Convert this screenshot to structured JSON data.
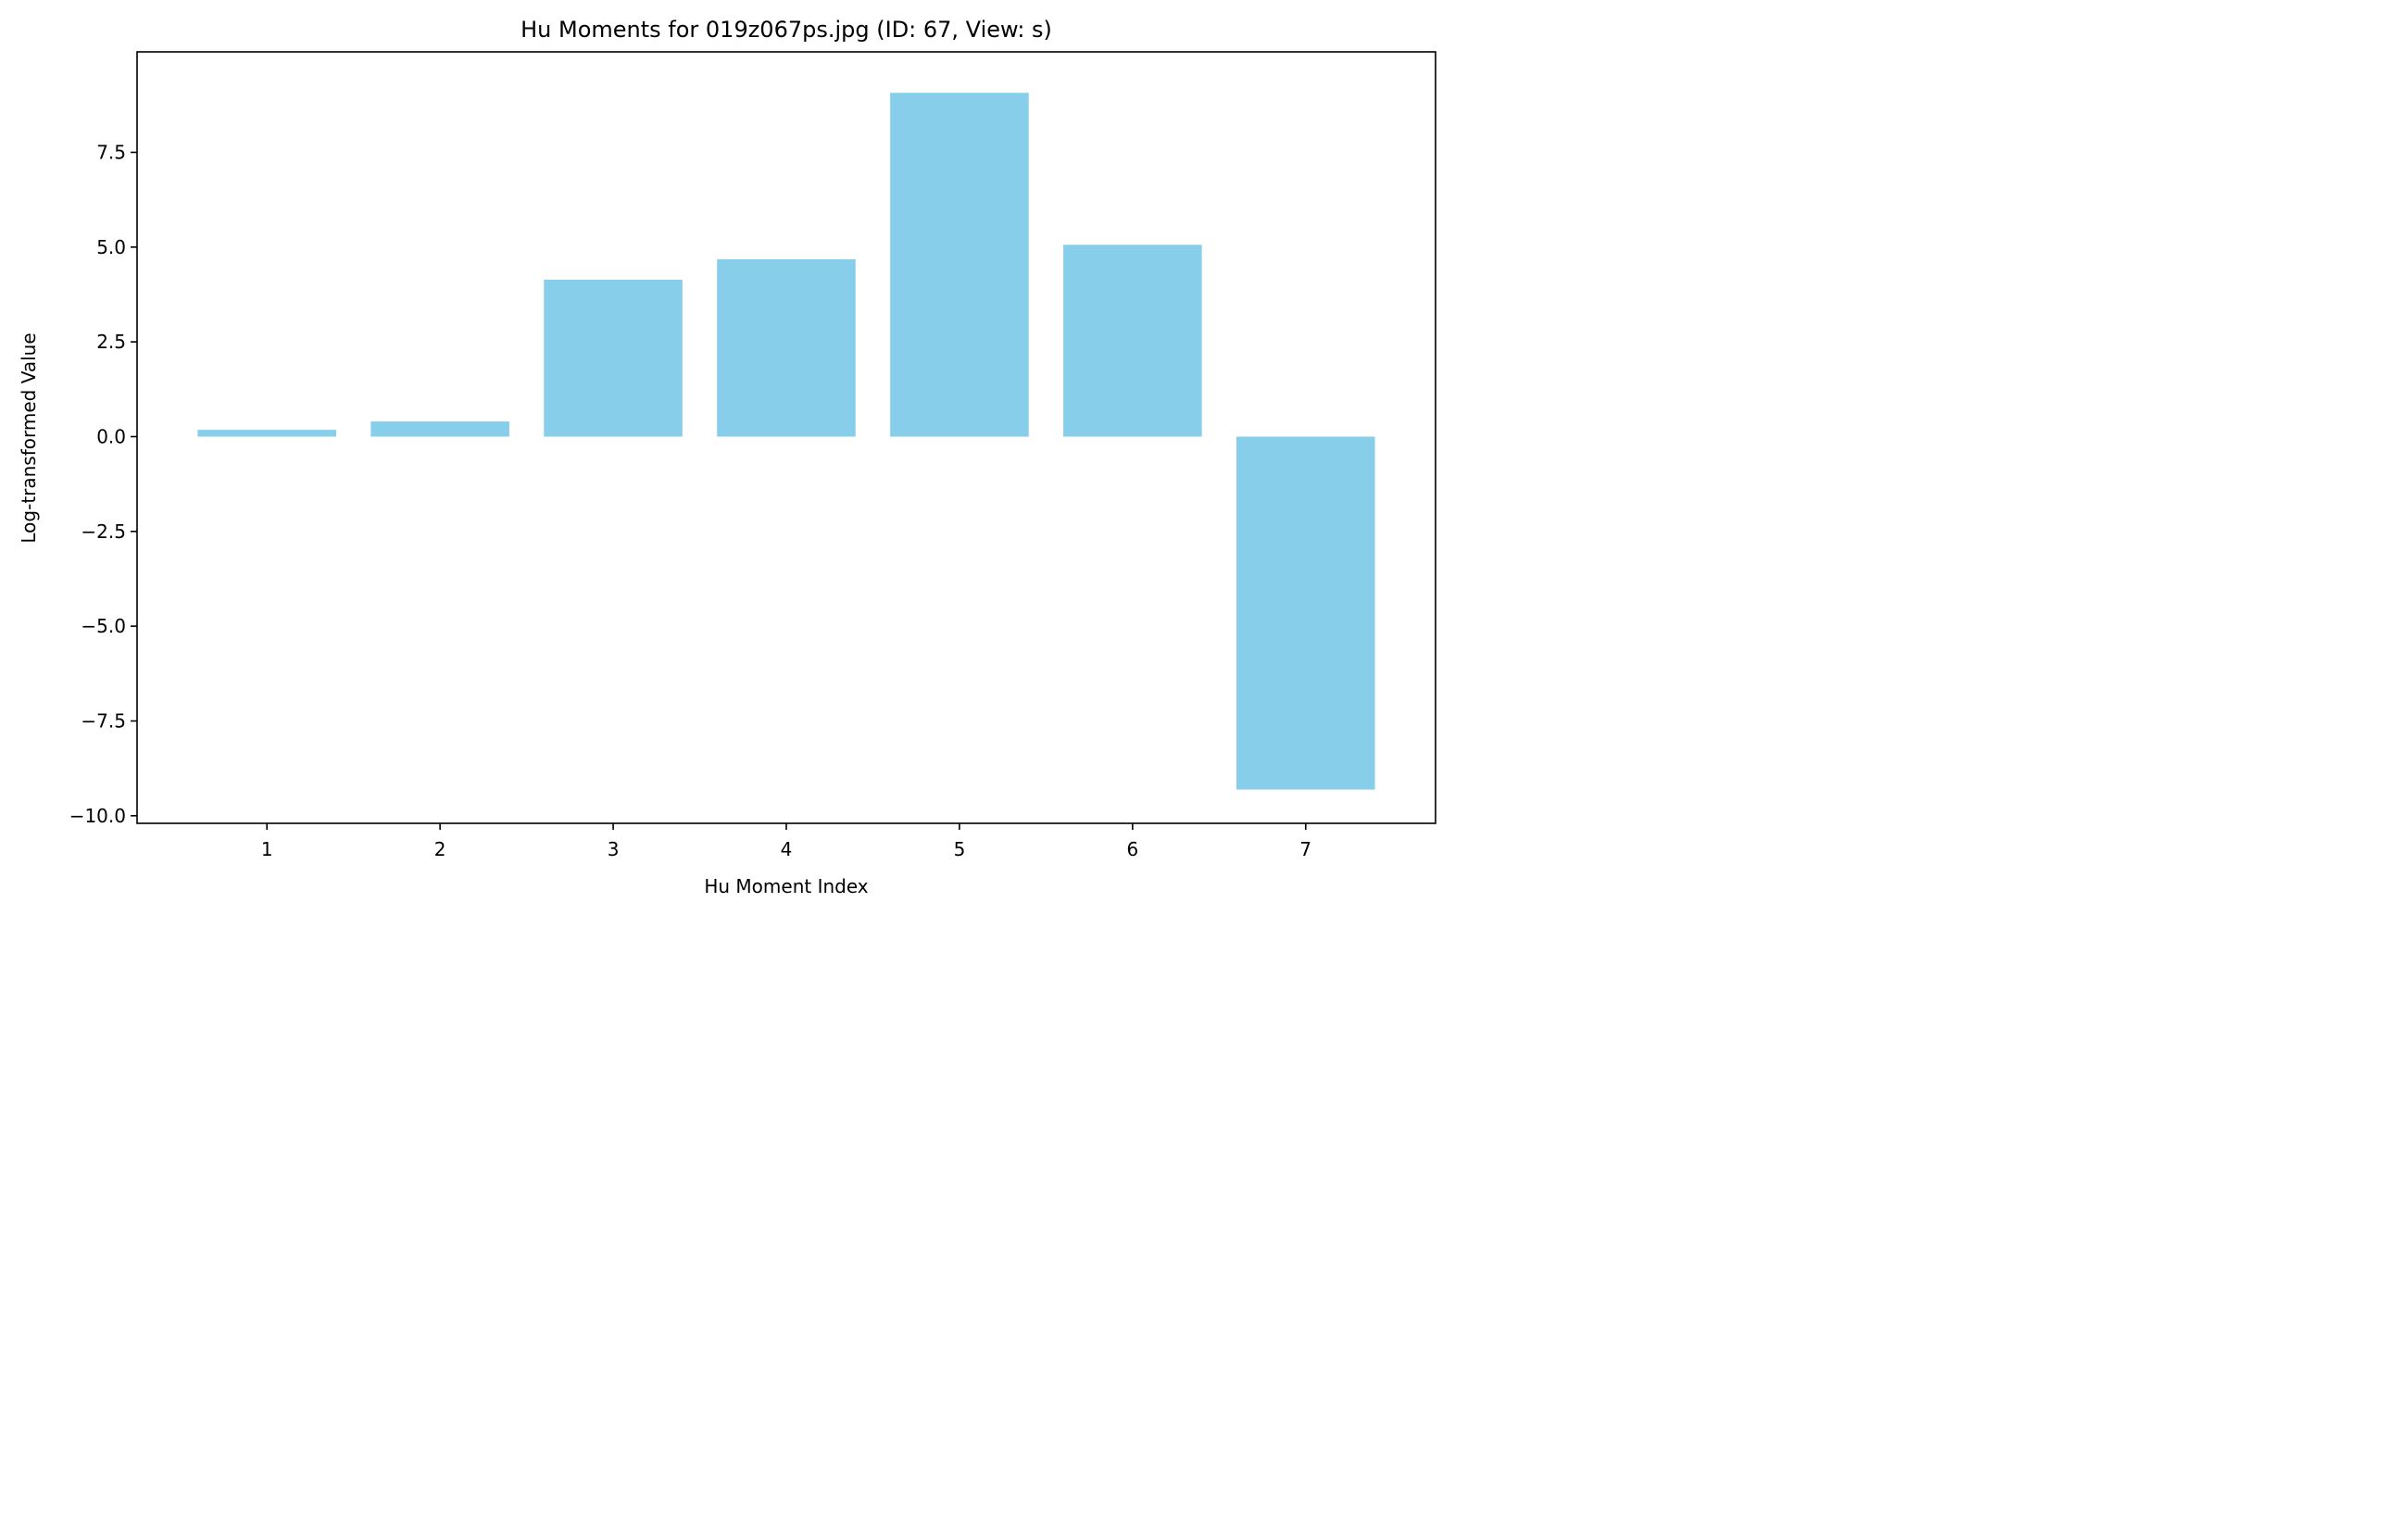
{
  "chart_data": {
    "type": "bar",
    "title": "Hu Moments for 019z067ps.jpg (ID: 67, View: s)",
    "xlabel": "Hu Moment Index",
    "ylabel": "Log-transformed Value",
    "categories": [
      "1",
      "2",
      "3",
      "4",
      "5",
      "6",
      "7"
    ],
    "values": [
      0.18,
      0.4,
      4.14,
      4.68,
      9.07,
      5.06,
      -9.31
    ],
    "ylim": [
      -10.2,
      10.15
    ],
    "yticks": [
      -10.0,
      -7.5,
      -5.0,
      -2.5,
      0.0,
      2.5,
      5.0,
      7.5
    ],
    "ytick_labels": [
      "−10.0",
      "−7.5",
      "−5.0",
      "−2.5",
      "0.0",
      "2.5",
      "5.0",
      "7.5"
    ],
    "bar_color": "#87ceeb",
    "grid": false,
    "legend": "none"
  }
}
